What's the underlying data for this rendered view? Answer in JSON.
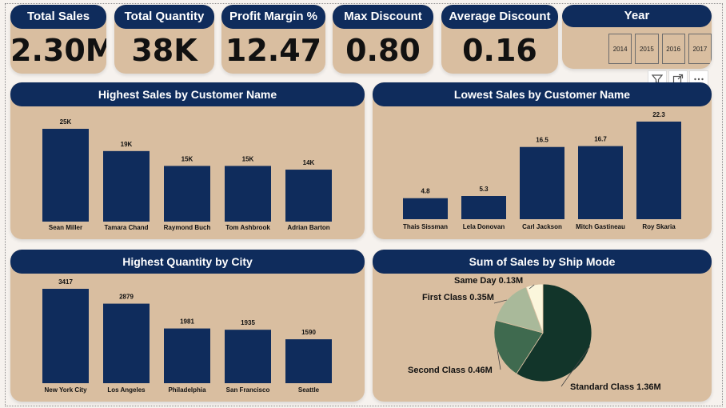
{
  "kpis": {
    "total_sales": {
      "title": "Total Sales",
      "value": "2.30M"
    },
    "total_quantity": {
      "title": "Total Quantity",
      "value": "38K"
    },
    "profit_margin": {
      "title": "Profit Margin %",
      "value": "12.47"
    },
    "max_discount": {
      "title": "Max Discount",
      "value": "0.80"
    },
    "average_discount": {
      "title": "Average Discount",
      "value": "0.16"
    }
  },
  "year_filter": {
    "title": "Year",
    "options": [
      "2014",
      "2015",
      "2016",
      "2017"
    ]
  },
  "toolbar": {
    "icons": [
      "filter-icon",
      "focus-mode-icon",
      "more-options-icon"
    ]
  },
  "chart_data": [
    {
      "id": "highest_sales",
      "type": "bar",
      "title": "Highest Sales by Customer Name",
      "categories": [
        "Sean Miller",
        "Tamara Chand",
        "Raymond Buch",
        "Tom Ashbrook",
        "Adrian Barton"
      ],
      "values": [
        25000,
        19000,
        15000,
        15000,
        14000
      ],
      "labels": [
        "25K",
        "19K",
        "15K",
        "15K",
        "14K"
      ],
      "color": "#0f2c5c"
    },
    {
      "id": "lowest_sales",
      "type": "bar",
      "title": "Lowest Sales by Customer Name",
      "categories": [
        "Thais Sissman",
        "Lela Donovan",
        "Carl Jackson",
        "Mitch Gastineau",
        "Roy Skaria"
      ],
      "values": [
        4.8,
        5.3,
        16.5,
        16.7,
        22.3
      ],
      "labels": [
        "4.8",
        "5.3",
        "16.5",
        "16.7",
        "22.3"
      ],
      "color": "#0f2c5c"
    },
    {
      "id": "highest_quantity",
      "type": "bar",
      "title": "Highest Quantity by City",
      "categories": [
        "New York City",
        "Los Angeles",
        "Philadelphia",
        "San Francisco",
        "Seattle"
      ],
      "values": [
        3417,
        2879,
        1981,
        1935,
        1590
      ],
      "labels": [
        "3417",
        "2879",
        "1981",
        "1935",
        "1590"
      ],
      "color": "#0f2c5c"
    },
    {
      "id": "sales_by_ship_mode",
      "type": "pie",
      "title": "Sum of Sales by Ship Mode",
      "categories": [
        "Standard Class",
        "Second Class",
        "First Class",
        "Same Day"
      ],
      "values": [
        1.36,
        0.46,
        0.35,
        0.13
      ],
      "labels": [
        "Standard Class 1.36M",
        "Second Class 0.46M",
        "First Class 0.35M",
        "Same Day 0.13M"
      ],
      "colors": [
        "#12352a",
        "#3f6a4f",
        "#a9b99a",
        "#fbf6dc"
      ]
    }
  ]
}
